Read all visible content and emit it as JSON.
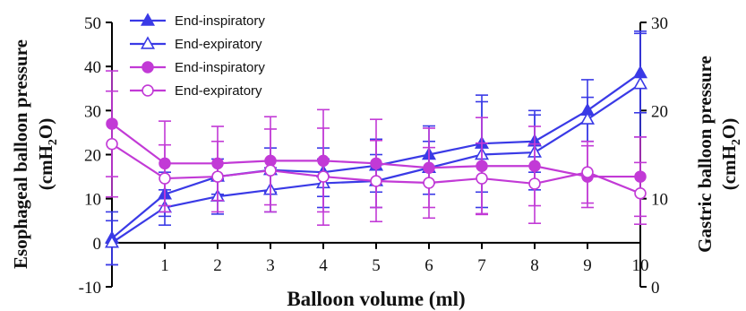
{
  "chart_data": {
    "type": "line",
    "xlabel": "Balloon  volume (ml)",
    "ylabel": "Esophageal balloon pressure",
    "ylabel_unit": "(cmH",
    "ylabel_sub": "2",
    "ylabel_close": "O)",
    "y2label": "Gastric balloon pressure",
    "y2label_unit": "(cmH",
    "y2label_sub": "2",
    "y2label_close": "O)",
    "x": [
      0,
      1,
      2,
      3,
      4,
      5,
      6,
      7,
      8,
      9,
      10
    ],
    "xticks": [
      1,
      2,
      3,
      4,
      5,
      6,
      7,
      8,
      9,
      10
    ],
    "xlim": [
      0,
      10
    ],
    "ylim": [
      -10,
      50
    ],
    "yticks": [
      -10,
      0,
      10,
      20,
      30,
      40,
      50
    ],
    "y2lim": [
      0,
      30
    ],
    "y2ticks": [
      0,
      10,
      20,
      30
    ],
    "legend_position": "top-left",
    "colors": {
      "esophageal": "#3a3ae6",
      "gastric": "#c23ad6"
    },
    "series": [
      {
        "name": "End-inspiratory",
        "axis": "left",
        "marker": "filled-triangle",
        "color": "#3a3ae6",
        "values": [
          1,
          11,
          15,
          16.5,
          16,
          17.5,
          20,
          22.5,
          23,
          30,
          38.5
        ],
        "err": [
          6,
          5,
          4,
          5,
          5.5,
          6,
          6.5,
          11,
          7,
          7,
          9
        ]
      },
      {
        "name": "End-expiratory",
        "axis": "left",
        "marker": "open-triangle",
        "color": "#3a3ae6",
        "values": [
          0,
          8,
          10.5,
          12,
          13.5,
          14,
          17,
          20,
          20.5,
          28,
          36
        ],
        "err": [
          5,
          4,
          4,
          5,
          5.5,
          6,
          6,
          12,
          8.5,
          5,
          12
        ]
      },
      {
        "name": "End-inspiratory",
        "axis": "right",
        "marker": "filled-circle",
        "color": "#c23ad6",
        "values": [
          18.5,
          14,
          14,
          14.3,
          14.3,
          14,
          13.5,
          13.7,
          13.7,
          12.5,
          12.5
        ],
        "err": [
          6,
          4.8,
          4.2,
          5,
          5.8,
          5,
          4.5,
          5.5,
          4.5,
          3.5,
          4.5
        ]
      },
      {
        "name": "End-expiratory",
        "axis": "right",
        "marker": "open-circle",
        "color": "#c23ad6",
        "values": [
          16.2,
          12.3,
          12.5,
          13.2,
          12.5,
          12,
          11.8,
          12.3,
          11.7,
          13,
          10.6
        ],
        "err": [
          6,
          3.8,
          4,
          4.7,
          5.5,
          4.6,
          4,
          4,
          4.5,
          3.5,
          3.5
        ]
      }
    ]
  }
}
